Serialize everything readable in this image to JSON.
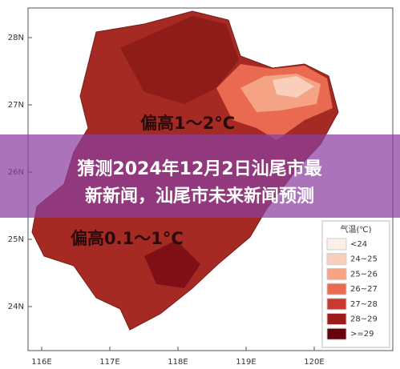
{
  "banner": {
    "lines": [
      "猜测2024年12月2日汕尾市最",
      "新新闻，汕尾市未来新闻预测"
    ]
  },
  "map": {
    "lat_labels": [
      "28N",
      "27N",
      "26N",
      "25N",
      "24N"
    ],
    "lon_labels": [
      "116E",
      "117E",
      "118E",
      "119E",
      "120E"
    ],
    "annotations": [
      "偏高1～2°C",
      "偏高0.1～1°C"
    ]
  },
  "legend": {
    "title": "气温(℃)",
    "items": [
      {
        "label": "<24",
        "color": "#fdefe8"
      },
      {
        "label": "24~25",
        "color": "#f9cfbb"
      },
      {
        "label": "25~26",
        "color": "#f4a384"
      },
      {
        "label": "26~27",
        "color": "#e96a50"
      },
      {
        "label": "27~28",
        "color": "#c93a2e"
      },
      {
        "label": "28~29",
        "color": "#9c1c1c"
      },
      {
        "label": ">=29",
        "color": "#66000d"
      }
    ]
  }
}
